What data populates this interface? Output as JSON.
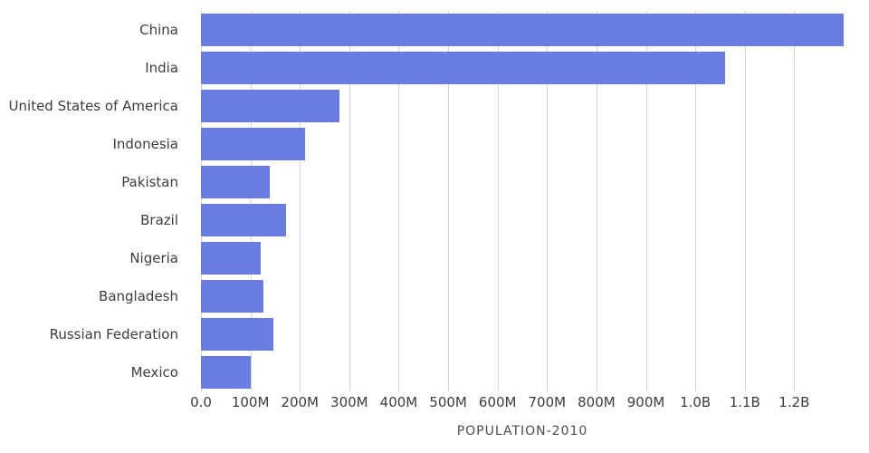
{
  "chart_data": {
    "type": "bar",
    "orientation": "horizontal",
    "title": "",
    "xlabel": "POPULATION-2010",
    "ylabel": "",
    "categories": [
      "China",
      "India",
      "United States of America",
      "Indonesia",
      "Pakistan",
      "Brazil",
      "Nigeria",
      "Bangladesh",
      "Russian Federation",
      "Mexico"
    ],
    "values_millions": [
      1300,
      1060,
      281,
      210,
      139,
      172,
      121,
      127,
      146,
      100
    ],
    "xlim_millions": [
      0,
      1300
    ],
    "ticks_millions": [
      0,
      100,
      200,
      300,
      400,
      500,
      600,
      700,
      800,
      900,
      1000,
      1100,
      1200
    ],
    "tick_labels": [
      "0.0",
      "100M",
      "200M",
      "300M",
      "400M",
      "500M",
      "600M",
      "700M",
      "800M",
      "900M",
      "1.0B",
      "1.1B",
      "1.2B"
    ],
    "grid": true,
    "legend": false,
    "bar_color": "#6b7ce0",
    "grid_color": "#d8d8d8",
    "label_color": "#3d3d3d",
    "axis_title_color": "#4d4d4d"
  }
}
